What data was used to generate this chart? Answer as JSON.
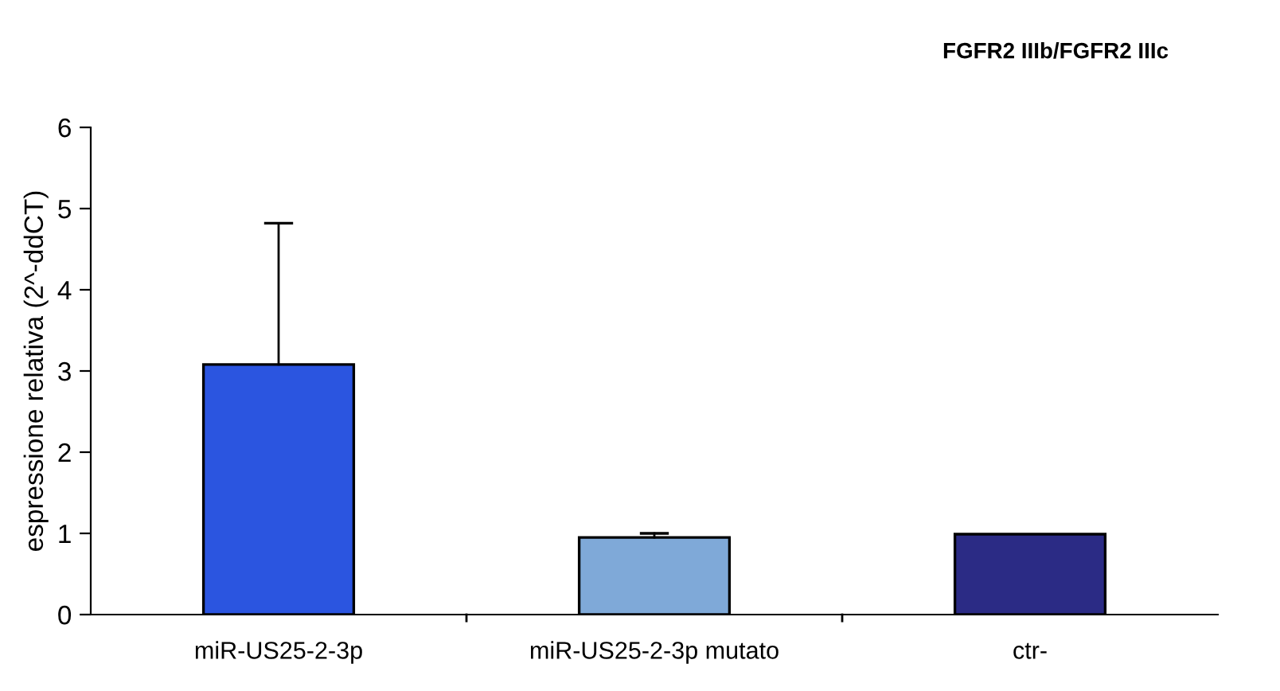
{
  "chart_data": {
    "type": "bar",
    "title": "FGFR2 IIIb/FGFR2 IIIc",
    "ylabel": "espressione relativa (2^-ddCT)",
    "categories": [
      "miR-US25-2-3p",
      "miR-US25-2-3p mutato",
      "ctr-"
    ],
    "values": [
      3.08,
      0.95,
      0.99
    ],
    "colors": [
      "#2b55e0",
      "#7fa9d8",
      "#2b2b85"
    ],
    "errors": [
      [
        3.08,
        4.82
      ],
      [
        0.95,
        1.0
      ],
      null
    ],
    "ylim": [
      0,
      6
    ],
    "yticks": [
      0,
      1,
      2,
      3,
      4,
      5,
      6
    ],
    "grid": false,
    "legend": false
  }
}
